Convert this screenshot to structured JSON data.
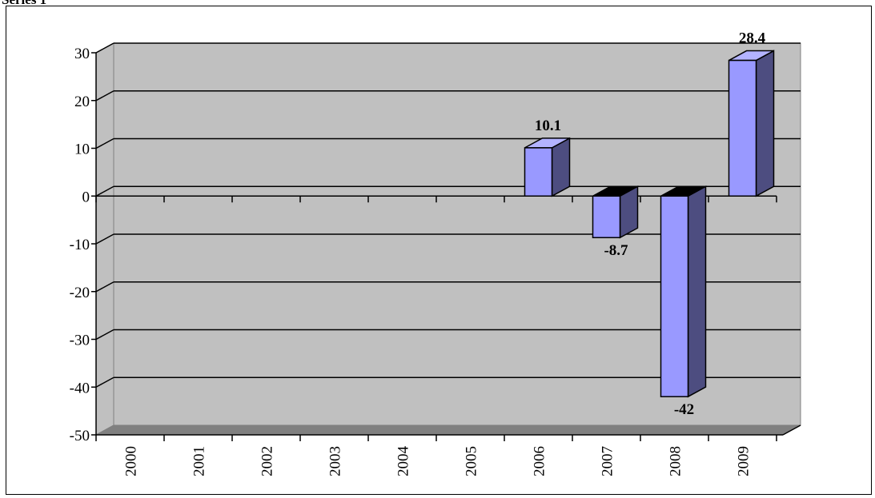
{
  "chart_data": {
    "type": "bar",
    "title": "Series 1",
    "categories": [
      "2000",
      "2001",
      "2002",
      "2003",
      "2004",
      "2005",
      "2006",
      "2007",
      "2008",
      "2009"
    ],
    "series": [
      {
        "name": "Series 1",
        "values": [
          null,
          null,
          null,
          null,
          null,
          null,
          10.1,
          -8.7,
          -42,
          28.4
        ]
      }
    ],
    "data_labels": [
      "",
      "",
      "",
      "",
      "",
      "",
      "10.1",
      "-8.7",
      "-42",
      "28.4"
    ],
    "ylim": [
      -50,
      30
    ],
    "yticks": [
      "30",
      "20",
      "10",
      "0",
      "-10",
      "-20",
      "-30",
      "-40",
      "-50"
    ],
    "grid": true,
    "style_3d": true,
    "colors": {
      "wall": "#c0c0c0",
      "floor": "#808080",
      "bar_front": "#9999ff",
      "bar_side": "#4d4d80",
      "bar_top": "#b3b3ff",
      "gridline": "#000000"
    }
  }
}
